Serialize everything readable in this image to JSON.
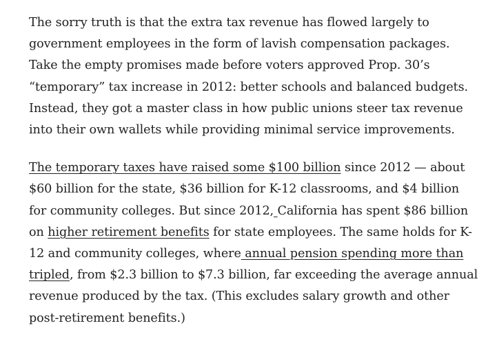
{
  "paragraph1": {
    "lines": [
      "The sorry truth is that the extra tax revenue has flowed largely to",
      "government employees in the form of lavish compensation packages.",
      "Take the empty promises made before voters approved Prop. 30’s",
      "“temporary” tax increase in 2012: better schools and balanced budgets.",
      "Instead, they got a master class in how public unions steer tax revenue",
      "into their own wallets while providing minimal service improvements."
    ]
  },
  "paragraph2": {
    "line1": {
      "link": "The temporary taxes have raised some $100 billion",
      "text": " since 2012 — about"
    },
    "line2": "$60 billion for the state, $36 billion for K-12 classrooms, and $4 billion",
    "line3": {
      "text": "for community colleges. But since 2012,",
      "link": " ",
      "text_after": "California has spent $86 billion"
    },
    "line4": {
      "text_before": "on ",
      "link": "higher retirement benefits",
      "text_after": " for state employees. The same holds for K-"
    },
    "line5": {
      "text": "12 and community colleges, where",
      "link": " annual pension spending more than"
    },
    "line6": {
      "link": "tripled",
      "text": ", from $2.3 billion to $7.3 billion, far exceeding the average annual"
    },
    "line7": "revenue produced by the tax. (This excludes salary growth and other",
    "line8": "post-retirement benefits.)"
  }
}
